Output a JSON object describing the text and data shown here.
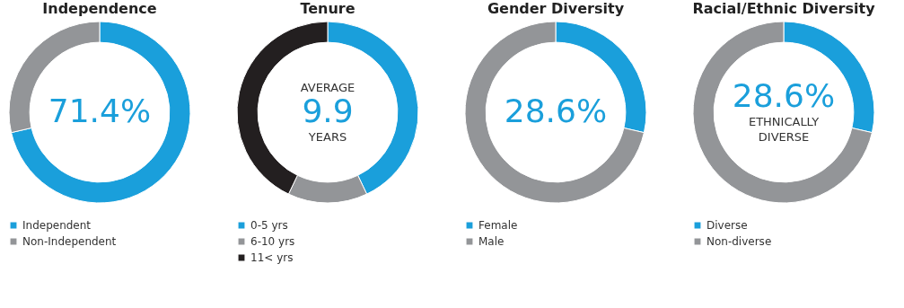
{
  "chart_data": [
    {
      "type": "donut",
      "title": "Independence",
      "categories": [
        "Independent",
        "Non-Independent"
      ],
      "values": [
        71.4,
        28.6
      ],
      "colors": [
        "#1a9fdb",
        "#939598"
      ],
      "annotations": [
        "71.4%"
      ],
      "legend": "bottom"
    },
    {
      "type": "donut",
      "title": "Tenure",
      "categories": [
        "0-5 yrs",
        "6-10 yrs",
        "11< yrs"
      ],
      "values": [
        42.9,
        14.2,
        42.9
      ],
      "colors": [
        "#1a9fdb",
        "#939598",
        "#231f20"
      ],
      "annotations": [
        "AVERAGE",
        "9.9",
        "YEARS"
      ],
      "legend": "bottom"
    },
    {
      "type": "donut",
      "title": "Gender Diversity",
      "categories": [
        "Female",
        "Male"
      ],
      "values": [
        28.6,
        71.4
      ],
      "colors": [
        "#1a9fdb",
        "#939598"
      ],
      "annotations": [
        "28.6%"
      ],
      "legend": "bottom"
    },
    {
      "type": "donut",
      "title": "Racial/Ethnic Diversity",
      "categories": [
        "Diverse",
        "Non-diverse"
      ],
      "values": [
        28.6,
        71.4
      ],
      "colors": [
        "#1a9fdb",
        "#939598"
      ],
      "annotations": [
        "28.6%",
        "ETHNICALLY",
        "DIVERSE"
      ],
      "legend": "bottom"
    }
  ]
}
